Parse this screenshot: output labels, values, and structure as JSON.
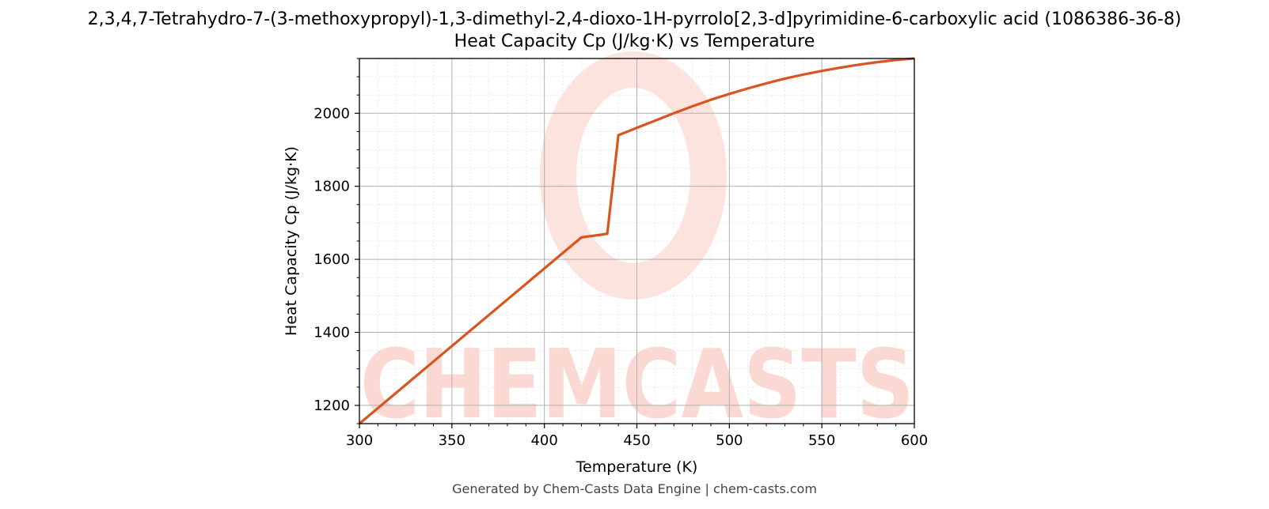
{
  "chart_data": {
    "type": "line",
    "title": "2,3,4,7-Tetrahydro-7-(3-methoxypropyl)-1,3-dimethyl-2,4-dioxo-1H-pyrrolo[2,3-d]pyrimidine-6-carboxylic acid (1086386-36-8)",
    "subtitle": "Heat Capacity Cp (J/kg·K) vs Temperature",
    "xlabel": "Temperature (K)",
    "ylabel": "Heat Capacity Cp (J/kg·K)",
    "xlim": [
      300,
      600
    ],
    "ylim": [
      1150,
      2150
    ],
    "x_ticks": [
      300,
      350,
      400,
      450,
      500,
      550,
      600
    ],
    "y_ticks": [
      1200,
      1400,
      1600,
      1800,
      2000
    ],
    "grid": true,
    "minor_grid": true,
    "legend": "none",
    "line_color": "#d9541e",
    "series": [
      {
        "x": [
          300,
          320,
          340,
          360,
          380,
          400,
          420,
          434,
          440,
          450,
          460,
          470,
          480,
          490,
          500,
          510,
          520,
          530,
          540,
          550,
          560,
          570,
          580,
          590,
          600
        ],
        "values": [
          1150,
          1235,
          1320,
          1405,
          1490,
          1575,
          1660,
          1670,
          1940,
          1960,
          1980,
          2000,
          2019,
          2037,
          2053,
          2068,
          2082,
          2095,
          2106,
          2116,
          2125,
          2133,
          2140,
          2146,
          2150
        ]
      }
    ]
  },
  "watermark": {
    "text": "CHEMCASTS",
    "color": "#fbd9d2"
  },
  "footer": "Generated by Chem-Casts Data Engine | chem-casts.com"
}
